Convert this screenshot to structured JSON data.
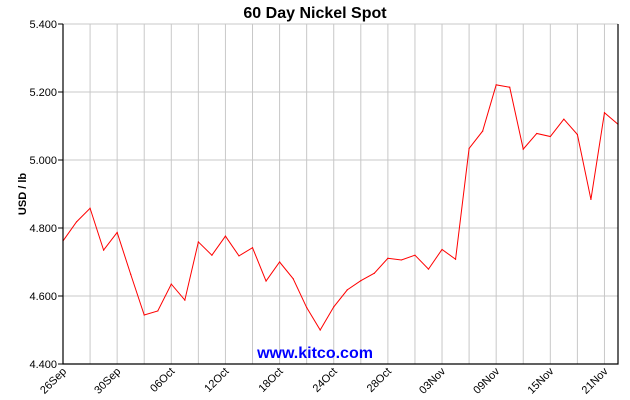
{
  "chart_data": {
    "type": "line",
    "title": "60 Day Nickel Spot",
    "xlabel": "",
    "ylabel": "USD / lb",
    "watermark": "www.kitco.com",
    "ylim": [
      4.4,
      5.4
    ],
    "y_ticks": [
      "4.400",
      "4.600",
      "4.800",
      "5.000",
      "5.200",
      "5.400"
    ],
    "y_tick_values": [
      4.4,
      4.6,
      4.8,
      5.0,
      5.2,
      5.4
    ],
    "x_tick_labels": [
      {
        "index": 0,
        "label": "26Sep"
      },
      {
        "index": 4,
        "label": "30Sep"
      },
      {
        "index": 8,
        "label": "06Oct"
      },
      {
        "index": 12,
        "label": "12Oct"
      },
      {
        "index": 16,
        "label": "18Oct"
      },
      {
        "index": 20,
        "label": "24Oct"
      },
      {
        "index": 24,
        "label": "28Oct"
      },
      {
        "index": 28,
        "label": "03Nov"
      },
      {
        "index": 32,
        "label": "09Nov"
      },
      {
        "index": 36,
        "label": "15Nov"
      },
      {
        "index": 40,
        "label": "21Nov"
      }
    ],
    "grid": true,
    "line_color": "#ff0000",
    "series": [
      {
        "values": [
          4.762,
          4.818,
          4.858,
          4.735,
          4.787,
          4.664,
          4.544,
          4.556,
          4.635,
          4.588,
          4.759,
          4.72,
          4.776,
          4.718,
          4.742,
          4.644,
          4.7,
          4.651,
          4.566,
          4.5,
          4.568,
          4.618,
          4.645,
          4.667,
          4.711,
          4.706,
          4.72,
          4.679,
          4.737,
          4.708,
          5.034,
          5.085,
          5.221,
          5.214,
          5.032,
          5.078,
          5.069,
          5.12,
          5.075,
          4.884,
          5.139,
          5.105
        ]
      }
    ]
  }
}
